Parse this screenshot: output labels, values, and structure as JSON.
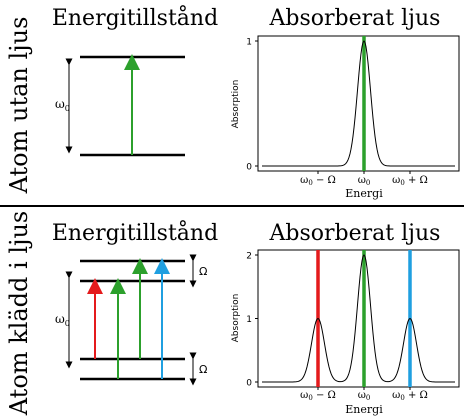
{
  "top": {
    "row_label": "Atom utan ljus",
    "energy_title": "Energitillstånd",
    "absorb_title": "Absorberat ljus",
    "omega_label": "ω",
    "omega_sub": "0",
    "ylabel": "Absorption",
    "xlabel": "Energi",
    "xticks": [
      "ω0 − Ω",
      "ω0",
      "ω0 + Ω"
    ],
    "yticks": [
      "0",
      "1"
    ]
  },
  "bottom": {
    "row_label": "Atom klädd i ljus",
    "energy_title": "Energitillstånd",
    "absorb_title": "Absorberat ljus",
    "omega_label": "ω",
    "omega_sub": "0",
    "split_label": "Ω",
    "ylabel": "Absorption",
    "xlabel": "Energi",
    "xticks": [
      "ω0 − Ω",
      "ω0",
      "ω0 + Ω"
    ],
    "yticks": [
      "0",
      "1",
      "2"
    ]
  },
  "colors": {
    "red": "#e41a1c",
    "green": "#2ca02c",
    "blue": "#1f9fe0",
    "black": "#000000"
  },
  "chart_data": [
    {
      "type": "line",
      "title": "Absorberat ljus",
      "xlabel": "Energi",
      "ylabel": "Absorption",
      "ylim": [
        0,
        1
      ],
      "x_ticks": [
        "ω0 − Ω",
        "ω0",
        "ω0 + Ω"
      ],
      "series": [
        {
          "peaks": [
            {
              "x": "ω0",
              "height": 1
            }
          ]
        }
      ],
      "markers": [
        {
          "x": "ω0",
          "color": "green"
        }
      ]
    },
    {
      "type": "line",
      "title": "Absorberat ljus",
      "xlabel": "Energi",
      "ylabel": "Absorption",
      "ylim": [
        0,
        2
      ],
      "x_ticks": [
        "ω0 − Ω",
        "ω0",
        "ω0 + Ω"
      ],
      "series": [
        {
          "peaks": [
            {
              "x": "ω0 − Ω",
              "height": 1
            },
            {
              "x": "ω0",
              "height": 2
            },
            {
              "x": "ω0 + Ω",
              "height": 1
            }
          ]
        }
      ],
      "markers": [
        {
          "x": "ω0 − Ω",
          "color": "red"
        },
        {
          "x": "ω0",
          "color": "green"
        },
        {
          "x": "ω0 + Ω",
          "color": "blue"
        }
      ]
    }
  ]
}
